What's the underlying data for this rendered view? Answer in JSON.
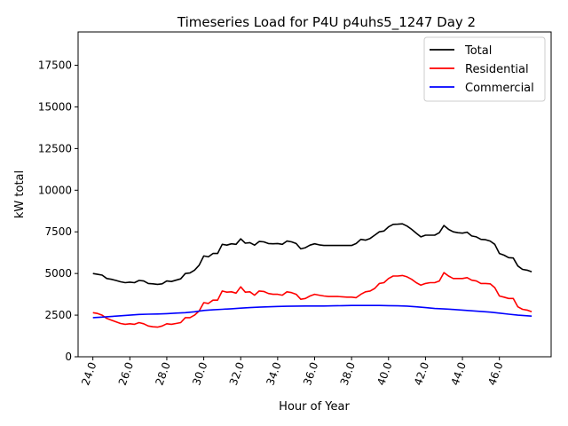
{
  "chart_data": {
    "type": "line",
    "title": "Timeseries Load for P4U p4uhs5_1247  Day 2",
    "xlabel": "Hour of Year",
    "ylabel": "kW total",
    "xlim": [
      23.2,
      48.8
    ],
    "ylim": [
      0,
      19500
    ],
    "xticks": [
      24,
      26,
      28,
      30,
      32,
      34,
      36,
      38,
      40,
      42,
      44,
      46
    ],
    "xtick_labels": [
      "24.0",
      "26.0",
      "28.0",
      "30.0",
      "32.0",
      "34.0",
      "36.0",
      "38.0",
      "40.0",
      "42.0",
      "44.0",
      "46.0"
    ],
    "yticks": [
      0,
      2500,
      5000,
      7500,
      10000,
      12500,
      15000,
      17500
    ],
    "ytick_labels": [
      "0",
      "2500",
      "5000",
      "7500",
      "10000",
      "12500",
      "15000",
      "17500"
    ],
    "legend_position": "top-right",
    "series": [
      {
        "name": "Total",
        "color": "#000000",
        "x": [
          24,
          24.25,
          24.5,
          24.75,
          25,
          25.25,
          25.5,
          25.75,
          26,
          26.25,
          26.5,
          26.75,
          27,
          27.25,
          27.5,
          27.75,
          28,
          28.25,
          28.5,
          28.75,
          29,
          29.25,
          29.5,
          29.75,
          30,
          30.25,
          30.5,
          30.75,
          31,
          31.25,
          31.5,
          31.75,
          32,
          32.25,
          32.5,
          32.75,
          33,
          33.25,
          33.5,
          33.75,
          34,
          34.25,
          34.5,
          34.75,
          35,
          35.25,
          35.5,
          35.75,
          36,
          36.25,
          36.5,
          36.75,
          37,
          37.25,
          37.5,
          37.75,
          38,
          38.25,
          38.5,
          38.75,
          39,
          39.25,
          39.5,
          39.75,
          40,
          40.25,
          40.5,
          40.75,
          41,
          41.25,
          41.5,
          41.75,
          42,
          42.25,
          42.5,
          42.75,
          43,
          43.25,
          43.5,
          43.75,
          44,
          44.25,
          44.5,
          44.75,
          45,
          45.25,
          45.5,
          45.75,
          46,
          46.25,
          46.5,
          46.75,
          47,
          47.25,
          47.5,
          47.75
        ],
        "values": [
          5000,
          4950,
          4900,
          4700,
          4650,
          4580,
          4500,
          4450,
          4480,
          4450,
          4580,
          4550,
          4400,
          4380,
          4350,
          4380,
          4550,
          4520,
          4600,
          4680,
          5000,
          5030,
          5200,
          5500,
          6050,
          6000,
          6200,
          6200,
          6750,
          6700,
          6780,
          6750,
          7080,
          6820,
          6850,
          6700,
          6920,
          6900,
          6800,
          6780,
          6800,
          6750,
          6950,
          6900,
          6800,
          6480,
          6550,
          6700,
          6780,
          6720,
          6680,
          6680,
          6680,
          6680,
          6680,
          6680,
          6680,
          6800,
          7050,
          7000,
          7100,
          7300,
          7500,
          7550,
          7800,
          7950,
          7960,
          7980,
          7850,
          7650,
          7420,
          7200,
          7300,
          7300,
          7300,
          7450,
          7880,
          7650,
          7500,
          7450,
          7420,
          7480,
          7250,
          7200,
          7050,
          7030,
          6950,
          6750,
          6200,
          6100,
          5950,
          5930,
          5450,
          5250,
          5200,
          5100
        ]
      },
      {
        "name": "Residential",
        "color": "#ff0000",
        "x": [
          24,
          24.25,
          24.5,
          24.75,
          25,
          25.25,
          25.5,
          25.75,
          26,
          26.25,
          26.5,
          26.75,
          27,
          27.25,
          27.5,
          27.75,
          28,
          28.25,
          28.5,
          28.75,
          29,
          29.25,
          29.5,
          29.75,
          30,
          30.25,
          30.5,
          30.75,
          31,
          31.25,
          31.5,
          31.75,
          32,
          32.25,
          32.5,
          32.75,
          33,
          33.25,
          33.5,
          33.75,
          34,
          34.25,
          34.5,
          34.75,
          35,
          35.25,
          35.5,
          35.75,
          36,
          36.25,
          36.5,
          36.75,
          37,
          37.25,
          37.5,
          37.75,
          38,
          38.25,
          38.5,
          38.75,
          39,
          39.25,
          39.5,
          39.75,
          40,
          40.25,
          40.5,
          40.75,
          41,
          41.25,
          41.5,
          41.75,
          42,
          42.25,
          42.5,
          42.75,
          43,
          43.25,
          43.5,
          43.75,
          44,
          44.25,
          44.5,
          44.75,
          45,
          45.25,
          45.5,
          45.75,
          46,
          46.25,
          46.5,
          46.75,
          47,
          47.25,
          47.5,
          47.75
        ],
        "values": [
          2650,
          2600,
          2500,
          2300,
          2200,
          2100,
          2000,
          1950,
          1980,
          1950,
          2050,
          1980,
          1850,
          1800,
          1780,
          1850,
          1980,
          1950,
          2000,
          2050,
          2350,
          2350,
          2500,
          2750,
          3250,
          3200,
          3400,
          3400,
          3950,
          3880,
          3900,
          3820,
          4200,
          3880,
          3900,
          3700,
          3950,
          3920,
          3800,
          3750,
          3750,
          3700,
          3900,
          3850,
          3750,
          3450,
          3500,
          3650,
          3750,
          3700,
          3650,
          3620,
          3620,
          3620,
          3600,
          3580,
          3580,
          3550,
          3750,
          3900,
          3950,
          4100,
          4400,
          4450,
          4700,
          4850,
          4850,
          4880,
          4800,
          4650,
          4450,
          4300,
          4400,
          4450,
          4450,
          4550,
          5050,
          4850,
          4700,
          4700,
          4700,
          4750,
          4600,
          4550,
          4400,
          4400,
          4380,
          4150,
          3650,
          3580,
          3500,
          3500,
          3000,
          2850,
          2800,
          2700
        ]
      },
      {
        "name": "Commercial",
        "color": "#0000ff",
        "x": [
          24,
          24.5,
          25,
          25.5,
          26,
          26.5,
          27,
          27.5,
          28,
          28.5,
          29,
          29.5,
          30,
          30.5,
          31,
          31.5,
          32,
          32.5,
          33,
          33.5,
          34,
          34.5,
          35,
          35.5,
          36,
          36.5,
          37,
          37.5,
          38,
          38.5,
          39,
          39.5,
          40,
          40.5,
          41,
          41.5,
          42,
          42.5,
          43,
          43.5,
          44,
          44.5,
          45,
          45.5,
          46,
          46.5,
          47,
          47.5,
          47.75
        ],
        "values": [
          2350,
          2380,
          2420,
          2460,
          2500,
          2540,
          2560,
          2570,
          2590,
          2620,
          2650,
          2700,
          2780,
          2820,
          2850,
          2880,
          2920,
          2950,
          2980,
          3000,
          3020,
          3030,
          3040,
          3050,
          3050,
          3050,
          3060,
          3070,
          3080,
          3080,
          3080,
          3080,
          3070,
          3060,
          3040,
          3000,
          2950,
          2900,
          2870,
          2840,
          2800,
          2760,
          2720,
          2680,
          2620,
          2560,
          2500,
          2460,
          2440
        ]
      }
    ]
  }
}
